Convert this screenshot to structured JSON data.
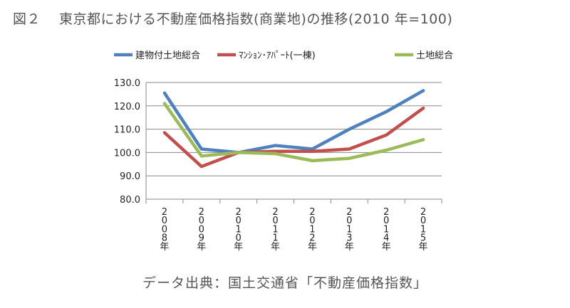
{
  "figure": {
    "number": "図２",
    "title": "東京都における不動産価格指数(商業地)の推移(2010 年=100)"
  },
  "source_note": "データ出典：国土交通省「不動産価格指数」",
  "chart_data": {
    "type": "line",
    "categories": [
      "2008年",
      "2009年",
      "2010年",
      "2011年",
      "2012年",
      "2013年",
      "2014年",
      "2015年"
    ],
    "ylim": [
      80,
      130
    ],
    "yticks": [
      "80.0",
      "90.0",
      "100.0",
      "110.0",
      "120.0",
      "130.0"
    ],
    "grid": true,
    "legend_position": "top",
    "series": [
      {
        "name": "建物付土地総合",
        "color": "#4F81BD",
        "values": [
          125.5,
          101.5,
          100.0,
          103.0,
          101.5,
          110.0,
          117.5,
          126.5
        ]
      },
      {
        "name": "ﾏﾝｼｮﾝ･ｱﾊﾟｰﾄ(一棟)",
        "color": "#C0504D",
        "values": [
          108.5,
          94.0,
          100.0,
          100.5,
          100.5,
          101.5,
          107.5,
          119.0
        ]
      },
      {
        "name": "土地総合",
        "color": "#9BBB59",
        "values": [
          121.0,
          98.5,
          100.0,
          99.5,
          96.5,
          97.5,
          101.0,
          105.5
        ]
      }
    ]
  }
}
